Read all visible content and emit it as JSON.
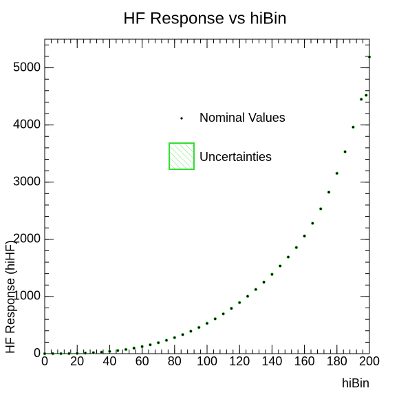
{
  "chart_data": {
    "type": "scatter",
    "title": "HF Response vs hiBin",
    "x_label": "hiBin",
    "y_label": "HF Response (hiHF)",
    "xlim": [
      0,
      200
    ],
    "xticks": [
      0,
      20,
      40,
      60,
      80,
      100,
      120,
      140,
      160,
      180,
      200
    ],
    "ylim": [
      0,
      5500
    ],
    "yticks": [
      0,
      1000,
      2000,
      3000,
      4000,
      5000
    ],
    "legend": {
      "position": "top-center",
      "entries": [
        "Nominal Values",
        "Uncertainties"
      ]
    },
    "series": [
      {
        "name": "Nominal Values",
        "color": "#000000",
        "band_color": "#33dd33",
        "x": [
          0,
          5,
          10,
          15,
          20,
          25,
          30,
          35,
          40,
          45,
          50,
          55,
          60,
          65,
          70,
          75,
          80,
          85,
          90,
          95,
          100,
          105,
          110,
          115,
          120,
          125,
          130,
          135,
          140,
          145,
          150,
          155,
          160,
          165,
          170,
          175,
          180,
          185,
          190,
          195,
          198,
          200
        ],
        "values": [
          0,
          1,
          1,
          2,
          5,
          10,
          17,
          26,
          39,
          54,
          73,
          96,
          123,
          155,
          191,
          233,
          280,
          333,
          392,
          458,
          530,
          609,
          696,
          791,
          893,
          1003,
          1123,
          1250,
          1387,
          1534,
          1690,
          1856,
          2057,
          2280,
          2533,
          2824,
          3154,
          3532,
          3962,
          4449,
          4520,
          5190
        ]
      }
    ]
  }
}
